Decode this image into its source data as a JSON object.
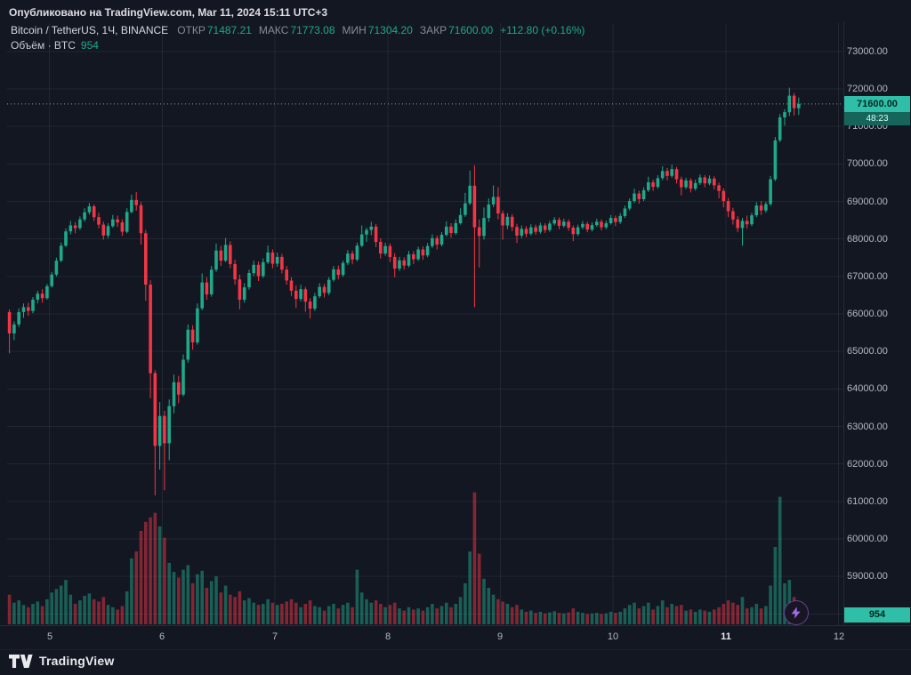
{
  "publish_bar": {
    "text": "Опубликовано на TradingView.com, Mar 11, 2024 15:11 UTC+3"
  },
  "legend": {
    "symbol": "Bitcoin / TetherUS, 1Ч, BINANCE",
    "ohlc": [
      {
        "label": "ОТКР",
        "value": "71487.21"
      },
      {
        "label": "МАКС",
        "value": "71773.08"
      },
      {
        "label": "МИН",
        "value": "71304.20"
      },
      {
        "label": "ЗАКР",
        "value": "71600.00"
      }
    ],
    "change": "+112.80 (+0.16%)",
    "volume_label": "Объём · BTC",
    "volume_value": "954"
  },
  "badges": {
    "last_price": "71600.00",
    "countdown": "48:23",
    "volume": "954"
  },
  "footer": {
    "brand": "TradingView"
  },
  "colors": {
    "background": "#131722",
    "up": "#1fa88a",
    "down": "#f23645",
    "grid": "rgba(240,243,250,0.07)",
    "axis_text": "#b4b8c3",
    "badge_bg": "#2fbfa8",
    "badge_text": "#07251f",
    "countdown_bg": "#15655a",
    "countdown_text": "#d9fff5",
    "last_price_line": "#9598a1",
    "bolt": "#9f6cf0",
    "separator": "#252a39"
  },
  "chart_data": {
    "type": "candlestick_with_volume",
    "title": "Bitcoin / TetherUS, 1Ч, BINANCE",
    "interval": "1H",
    "timezone": "UTC+3",
    "legend_ohlc": {
      "open": 71487.21,
      "high": 71773.08,
      "low": 71304.2,
      "close": 71600.0,
      "change": 112.8,
      "change_pct": 0.16,
      "volume_btc": 954
    },
    "last_price": 71600.0,
    "y_axis": {
      "visible_min": 57700,
      "visible_max": 73660,
      "tick_step": 1000,
      "tick_labels": [
        {
          "text": "73000.00",
          "value": 73000
        },
        {
          "text": "72000.00",
          "value": 72000
        },
        {
          "text": "71000.00",
          "value": 71000
        },
        {
          "text": "70000.00",
          "value": 70000
        },
        {
          "text": "69000.00",
          "value": 69000
        },
        {
          "text": "68000.00",
          "value": 68000
        },
        {
          "text": "67000.00",
          "value": 67000
        },
        {
          "text": "66000.00",
          "value": 66000
        },
        {
          "text": "65000.00",
          "value": 65000
        },
        {
          "text": "64000.00",
          "value": 64000
        },
        {
          "text": "63000.00",
          "value": 63000
        },
        {
          "text": "62000.00",
          "value": 62000
        },
        {
          "text": "61000.00",
          "value": 61000
        },
        {
          "text": "60000.00",
          "value": 60000
        },
        {
          "text": "59000.00",
          "value": 59000
        }
      ]
    },
    "x_axis": {
      "total_slots": 178,
      "tick_labels": [
        {
          "text": "5",
          "slot": 9
        },
        {
          "text": "6",
          "slot": 33
        },
        {
          "text": "7",
          "slot": 57
        },
        {
          "text": "8",
          "slot": 81
        },
        {
          "text": "9",
          "slot": 105
        },
        {
          "text": "10",
          "slot": 129
        },
        {
          "text": "11",
          "slot": 153,
          "strong": true
        },
        {
          "text": "12",
          "slot": 177
        }
      ]
    },
    "volume_axis_max": 12500,
    "columns": [
      "open",
      "high",
      "low",
      "close",
      "volume_btc"
    ],
    "candles": [
      [
        66050,
        66120,
        64950,
        65480,
        2600
      ],
      [
        65480,
        65800,
        65300,
        65720,
        1900
      ],
      [
        65720,
        66150,
        65650,
        66050,
        2100
      ],
      [
        66050,
        66280,
        65900,
        66180,
        1700
      ],
      [
        66180,
        66300,
        65950,
        66080,
        1500
      ],
      [
        66080,
        66450,
        66020,
        66380,
        1800
      ],
      [
        66380,
        66620,
        66280,
        66540,
        2000
      ],
      [
        66540,
        66660,
        66300,
        66420,
        1600
      ],
      [
        66420,
        66800,
        66380,
        66740,
        2200
      ],
      [
        66740,
        67120,
        66700,
        67050,
        2800
      ],
      [
        67050,
        67500,
        67000,
        67420,
        3100
      ],
      [
        67420,
        67900,
        67380,
        67820,
        3400
      ],
      [
        67820,
        68280,
        67780,
        68200,
        3900
      ],
      [
        68200,
        68480,
        68120,
        68360,
        2600
      ],
      [
        68360,
        68450,
        68150,
        68290,
        1800
      ],
      [
        68290,
        68600,
        68240,
        68520,
        2100
      ],
      [
        68520,
        68820,
        68460,
        68710,
        2500
      ],
      [
        68710,
        68960,
        68650,
        68870,
        2700
      ],
      [
        68870,
        68920,
        68480,
        68580,
        2200
      ],
      [
        68580,
        68700,
        68280,
        68380,
        2000
      ],
      [
        68380,
        68460,
        67980,
        68090,
        2400
      ],
      [
        68090,
        68420,
        68020,
        68340,
        1700
      ],
      [
        68340,
        68640,
        68300,
        68520,
        1500
      ],
      [
        68520,
        68620,
        68320,
        68440,
        1300
      ],
      [
        68440,
        68520,
        68080,
        68190,
        1600
      ],
      [
        68190,
        68820,
        68150,
        68720,
        2900
      ],
      [
        68720,
        69180,
        68680,
        69040,
        5800
      ],
      [
        69040,
        69250,
        68750,
        68900,
        6400
      ],
      [
        68900,
        68980,
        67850,
        68150,
        8200
      ],
      [
        68150,
        68240,
        66350,
        66780,
        9000
      ],
      [
        66780,
        66900,
        63750,
        64420,
        9400
      ],
      [
        64420,
        64500,
        61160,
        62480,
        9800
      ],
      [
        62480,
        63650,
        61850,
        63280,
        8600
      ],
      [
        63280,
        63420,
        61300,
        62550,
        7600
      ],
      [
        62550,
        63720,
        62100,
        63540,
        5400
      ],
      [
        63540,
        64380,
        63350,
        64180,
        4600
      ],
      [
        64180,
        64350,
        63620,
        63850,
        4100
      ],
      [
        63850,
        64920,
        63800,
        64780,
        4800
      ],
      [
        64780,
        65720,
        64700,
        65580,
        5200
      ],
      [
        65580,
        65700,
        65050,
        65240,
        3600
      ],
      [
        65240,
        66280,
        65180,
        66150,
        4400
      ],
      [
        66150,
        67080,
        66100,
        66840,
        4700
      ],
      [
        66840,
        66980,
        66380,
        66520,
        3200
      ],
      [
        66520,
        67280,
        66460,
        67180,
        3800
      ],
      [
        67180,
        67880,
        67120,
        67690,
        4200
      ],
      [
        67690,
        67820,
        67280,
        67420,
        2800
      ],
      [
        67420,
        68020,
        67380,
        67840,
        3400
      ],
      [
        67840,
        67940,
        67220,
        67330,
        2600
      ],
      [
        67330,
        67450,
        66780,
        66920,
        2400
      ],
      [
        66920,
        67050,
        66120,
        66380,
        2900
      ],
      [
        66380,
        66820,
        66300,
        66710,
        2100
      ],
      [
        66710,
        67180,
        66650,
        67090,
        2300
      ],
      [
        67090,
        67420,
        67010,
        67310,
        1900
      ],
      [
        67310,
        67400,
        66880,
        67010,
        1700
      ],
      [
        67010,
        67480,
        66960,
        67380,
        1800
      ],
      [
        67380,
        67820,
        67330,
        67640,
        2200
      ],
      [
        67640,
        67720,
        67220,
        67340,
        1900
      ],
      [
        67340,
        67640,
        67260,
        67520,
        1700
      ],
      [
        67520,
        67600,
        67080,
        67180,
        1800
      ],
      [
        67180,
        67280,
        66780,
        66890,
        2000
      ],
      [
        66890,
        66980,
        66480,
        66620,
        2200
      ],
      [
        66620,
        66760,
        66160,
        66400,
        1900
      ],
      [
        66400,
        66780,
        66330,
        66660,
        1500
      ],
      [
        66660,
        66720,
        66060,
        66330,
        1800
      ],
      [
        66330,
        66420,
        65880,
        66140,
        2100
      ],
      [
        66140,
        66560,
        66080,
        66470,
        1600
      ],
      [
        66470,
        66820,
        66420,
        66720,
        1500
      ],
      [
        66720,
        66800,
        66440,
        66560,
        1200
      ],
      [
        66560,
        66980,
        66500,
        66910,
        1600
      ],
      [
        66910,
        67280,
        66860,
        67190,
        1800
      ],
      [
        67190,
        67290,
        66920,
        67040,
        1400
      ],
      [
        67040,
        67420,
        66990,
        67360,
        1700
      ],
      [
        67360,
        67700,
        67300,
        67610,
        1900
      ],
      [
        67610,
        67690,
        67320,
        67450,
        1500
      ],
      [
        67450,
        67900,
        67400,
        67820,
        4800
      ],
      [
        67820,
        68360,
        67780,
        68120,
        2800
      ],
      [
        68120,
        68300,
        67920,
        68240,
        2200
      ],
      [
        68240,
        68460,
        68100,
        68330,
        1900
      ],
      [
        68330,
        68400,
        67780,
        67920,
        2100
      ],
      [
        67920,
        68020,
        67480,
        67610,
        1800
      ],
      [
        67610,
        67900,
        67550,
        67810,
        1500
      ],
      [
        67810,
        67880,
        67380,
        67520,
        1700
      ],
      [
        67520,
        67620,
        66980,
        67210,
        1900
      ],
      [
        67210,
        67520,
        67140,
        67430,
        1400
      ],
      [
        67430,
        67510,
        67180,
        67290,
        1200
      ],
      [
        67290,
        67680,
        67240,
        67590,
        1500
      ],
      [
        67590,
        67670,
        67330,
        67460,
        1300
      ],
      [
        67460,
        67790,
        67410,
        67720,
        1400
      ],
      [
        67720,
        67800,
        67440,
        67560,
        1200
      ],
      [
        67560,
        67890,
        67510,
        67810,
        1500
      ],
      [
        67810,
        68120,
        67760,
        68020,
        1800
      ],
      [
        68020,
        68090,
        67720,
        67850,
        1400
      ],
      [
        67850,
        68180,
        67800,
        68110,
        1600
      ],
      [
        68110,
        68470,
        68060,
        68330,
        1900
      ],
      [
        68330,
        68420,
        68030,
        68160,
        1500
      ],
      [
        68160,
        68520,
        68110,
        68420,
        1800
      ],
      [
        68420,
        68820,
        68380,
        68640,
        2400
      ],
      [
        68640,
        69230,
        68590,
        68950,
        3600
      ],
      [
        68950,
        69820,
        68900,
        69420,
        6400
      ],
      [
        69420,
        69960,
        66180,
        68310,
        11600
      ],
      [
        68310,
        68520,
        67240,
        68080,
        6200
      ],
      [
        68080,
        68840,
        67980,
        68560,
        4000
      ],
      [
        68560,
        69080,
        68460,
        68920,
        3200
      ],
      [
        68920,
        69430,
        68850,
        69120,
        2600
      ],
      [
        69120,
        69380,
        68520,
        68680,
        2200
      ],
      [
        68680,
        68760,
        67980,
        68360,
        2000
      ],
      [
        68360,
        68690,
        68260,
        68590,
        1800
      ],
      [
        68590,
        68660,
        68210,
        68320,
        1500
      ],
      [
        68320,
        68400,
        67890,
        68090,
        1700
      ],
      [
        68090,
        68360,
        68020,
        68270,
        1300
      ],
      [
        68270,
        68340,
        68050,
        68140,
        1100
      ],
      [
        68140,
        68390,
        68090,
        68310,
        1200
      ],
      [
        68310,
        68380,
        68110,
        68190,
        1000
      ],
      [
        68190,
        68430,
        68140,
        68360,
        1100
      ],
      [
        68360,
        68420,
        68160,
        68240,
        950
      ],
      [
        68240,
        68480,
        68190,
        68410,
        1050
      ],
      [
        68410,
        68580,
        68360,
        68510,
        1150
      ],
      [
        68510,
        68570,
        68260,
        68350,
        1000
      ],
      [
        68350,
        68540,
        68300,
        68460,
        950
      ],
      [
        68460,
        68520,
        68220,
        68300,
        1050
      ],
      [
        68300,
        68360,
        67940,
        68130,
        1400
      ],
      [
        68130,
        68380,
        68080,
        68310,
        1100
      ],
      [
        68310,
        68480,
        68260,
        68400,
        1000
      ],
      [
        68400,
        68460,
        68180,
        68250,
        900
      ],
      [
        68250,
        68440,
        68200,
        68370,
        950
      ],
      [
        68370,
        68540,
        68320,
        68460,
        1000
      ],
      [
        68460,
        68520,
        68230,
        68310,
        900
      ],
      [
        68310,
        68490,
        68260,
        68420,
        950
      ],
      [
        68420,
        68640,
        68380,
        68560,
        1100
      ],
      [
        68560,
        68620,
        68340,
        68450,
        1000
      ],
      [
        68450,
        68690,
        68400,
        68610,
        1100
      ],
      [
        68610,
        68890,
        68560,
        68810,
        1400
      ],
      [
        68810,
        69080,
        68760,
        69010,
        1700
      ],
      [
        69010,
        69340,
        68960,
        69210,
        1900
      ],
      [
        69210,
        69290,
        68940,
        69060,
        1400
      ],
      [
        69060,
        69380,
        69010,
        69300,
        1600
      ],
      [
        69300,
        69660,
        69250,
        69510,
        1900
      ],
      [
        69510,
        69580,
        69280,
        69390,
        1300
      ],
      [
        69390,
        69700,
        69340,
        69620,
        1600
      ],
      [
        69620,
        69940,
        69570,
        69810,
        2100
      ],
      [
        69810,
        69890,
        69560,
        69680,
        1500
      ],
      [
        69680,
        69980,
        69630,
        69860,
        1800
      ],
      [
        69860,
        69920,
        69480,
        69590,
        1600
      ],
      [
        69590,
        69660,
        69160,
        69380,
        1700
      ],
      [
        69380,
        69630,
        69330,
        69560,
        1200
      ],
      [
        69560,
        69620,
        69240,
        69340,
        1300
      ],
      [
        69340,
        69580,
        69290,
        69490,
        1100
      ],
      [
        69490,
        69720,
        69440,
        69640,
        1300
      ],
      [
        69640,
        69700,
        69380,
        69480,
        1200
      ],
      [
        69480,
        69690,
        69430,
        69610,
        1100
      ],
      [
        69610,
        69670,
        69320,
        69430,
        1300
      ],
      [
        69430,
        69500,
        69080,
        69280,
        1500
      ],
      [
        69280,
        69350,
        68840,
        69010,
        1800
      ],
      [
        69010,
        69090,
        68580,
        68740,
        2100
      ],
      [
        68740,
        68830,
        68380,
        68520,
        1900
      ],
      [
        68520,
        68610,
        68180,
        68290,
        1700
      ],
      [
        68290,
        68560,
        67820,
        68480,
        2400
      ],
      [
        68480,
        68620,
        68280,
        68390,
        1400
      ],
      [
        68390,
        68700,
        68340,
        68630,
        1500
      ],
      [
        68630,
        68980,
        68580,
        68890,
        1800
      ],
      [
        68890,
        69010,
        68640,
        68760,
        1400
      ],
      [
        68760,
        68990,
        68700,
        68930,
        1600
      ],
      [
        68930,
        69680,
        68880,
        69590,
        3400
      ],
      [
        69590,
        70720,
        69540,
        70630,
        6800
      ],
      [
        70630,
        71330,
        70580,
        71240,
        11200
      ],
      [
        71240,
        71460,
        71020,
        71380,
        3600
      ],
      [
        71380,
        72030,
        71280,
        71820,
        3900
      ],
      [
        71820,
        71890,
        71290,
        71487.21,
        2400
      ],
      [
        71487.21,
        71773.08,
        71304.2,
        71600.0,
        954
      ]
    ]
  }
}
